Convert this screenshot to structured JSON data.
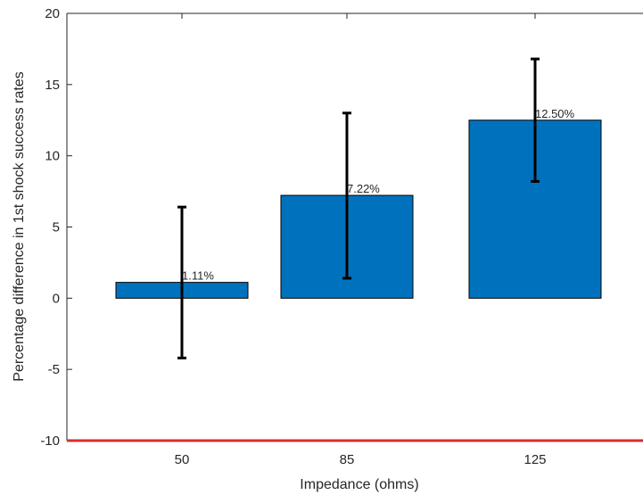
{
  "chart_data": {
    "type": "bar",
    "categories": [
      "50",
      "85",
      "125"
    ],
    "values": [
      1.11,
      7.22,
      12.5
    ],
    "data_labels": [
      "1.11%",
      "7.22%",
      "12.50%"
    ],
    "error_bars": [
      {
        "low": -4.2,
        "high": 6.4
      },
      {
        "low": 1.4,
        "high": 13.0
      },
      {
        "low": 8.2,
        "high": 16.8
      }
    ],
    "xlabel": "Impedance (ohms)",
    "ylabel": "Percentage difference in 1st shock success rates",
    "ylim": [
      -10,
      20
    ],
    "yticks": [
      -10,
      -5,
      0,
      5,
      10,
      15,
      20
    ],
    "reference_line": -10,
    "grid": false,
    "colors": {
      "bar": "#0072BD",
      "bar_edge": "#000000",
      "error_bar": "#000000",
      "reference_line": "#D32F2F",
      "axis": "#262626"
    }
  }
}
